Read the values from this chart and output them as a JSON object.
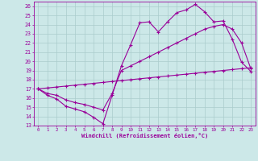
{
  "xlabel": "Windchill (Refroidissement éolien,°C)",
  "bg_color": "#cce8e8",
  "line_color": "#990099",
  "grid_color": "#aacccc",
  "xlim": [
    -0.5,
    23.5
  ],
  "ylim": [
    13,
    26.5
  ],
  "yticks": [
    13,
    14,
    15,
    16,
    17,
    18,
    19,
    20,
    21,
    22,
    23,
    24,
    25,
    26
  ],
  "xticks": [
    0,
    1,
    2,
    3,
    4,
    5,
    6,
    7,
    8,
    9,
    10,
    11,
    12,
    13,
    14,
    15,
    16,
    17,
    18,
    19,
    20,
    21,
    22,
    23
  ],
  "line1_x": [
    0,
    1,
    2,
    3,
    4,
    5,
    6,
    7,
    8,
    9,
    10,
    11,
    12,
    13,
    14,
    15,
    16,
    17,
    18,
    19,
    20,
    21,
    22,
    23
  ],
  "line1_y": [
    17.0,
    16.3,
    15.9,
    15.1,
    14.8,
    14.5,
    13.9,
    13.2,
    16.3,
    19.5,
    21.8,
    24.2,
    24.3,
    23.2,
    24.3,
    25.3,
    25.6,
    26.2,
    25.4,
    24.3,
    24.4,
    22.4,
    19.9,
    18.9
  ],
  "line2_x": [
    0,
    1,
    2,
    3,
    4,
    5,
    6,
    7,
    8,
    9,
    10,
    11,
    12,
    13,
    14,
    15,
    16,
    17,
    18,
    19,
    20,
    21,
    22,
    23
  ],
  "line2_y": [
    17.0,
    16.5,
    16.3,
    15.8,
    15.5,
    15.3,
    15.0,
    14.7,
    16.5,
    19.0,
    19.5,
    20.0,
    20.5,
    21.0,
    21.5,
    22.0,
    22.5,
    23.0,
    23.5,
    23.8,
    24.0,
    23.5,
    22.0,
    19.2
  ],
  "line3_x": [
    0,
    1,
    2,
    3,
    4,
    5,
    6,
    7,
    8,
    9,
    10,
    11,
    12,
    13,
    14,
    15,
    16,
    17,
    18,
    19,
    20,
    21,
    22,
    23
  ],
  "line3_y": [
    17.0,
    17.1,
    17.2,
    17.3,
    17.4,
    17.5,
    17.6,
    17.7,
    17.8,
    17.9,
    18.0,
    18.1,
    18.2,
    18.3,
    18.4,
    18.5,
    18.6,
    18.7,
    18.8,
    18.9,
    19.0,
    19.1,
    19.2,
    19.3
  ]
}
